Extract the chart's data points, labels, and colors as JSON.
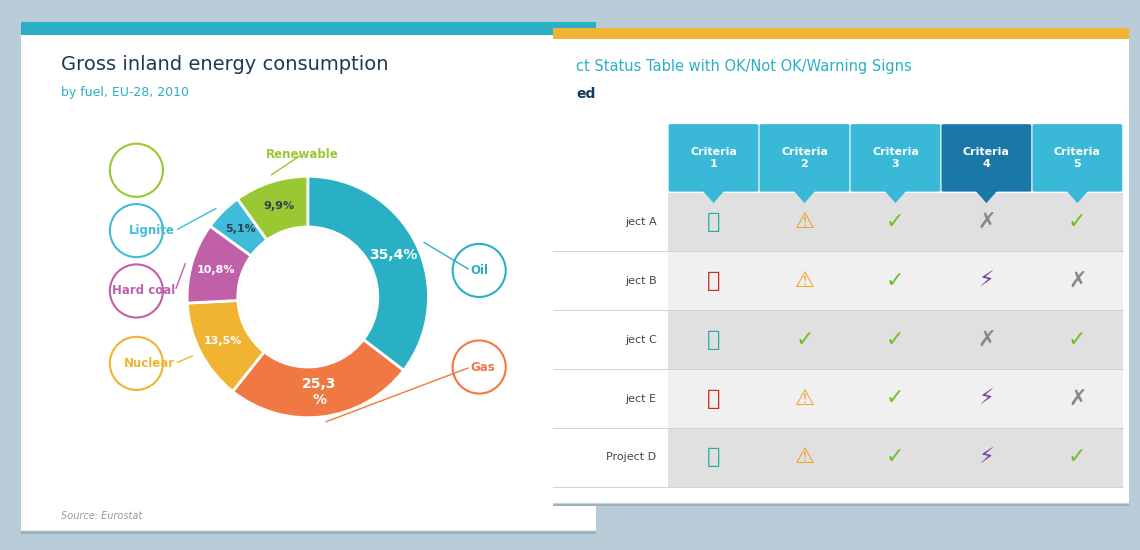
{
  "left_card": {
    "bg_color": "#ffffff",
    "title": "Gross inland energy consumption",
    "subtitle": "by fuel, EU-28, 2010",
    "title_color": "#1a3a5c",
    "subtitle_color": "#2ab0c5",
    "source": "Source: Eurostat",
    "top_border_color": "#2ab0c5",
    "pie_data": [
      35.4,
      25.3,
      13.5,
      10.8,
      5.1,
      9.9
    ],
    "pie_labels": [
      "Oil",
      "Gas",
      "Nuclear",
      "Hard coal",
      "Lignite",
      "Renewable"
    ],
    "pie_colors": [
      "#2ab0c5",
      "#f07843",
      "#f0b332",
      "#c060a8",
      "#40bcd8",
      "#9ac832"
    ],
    "pie_text_colors": [
      "#ffffff",
      "#ffffff",
      "#ffffff",
      "#ffffff",
      "#2e4057",
      "#2e4057"
    ],
    "pie_pct_labels": [
      "35,4%",
      "25,3\n%",
      "13,5%",
      "10,8%",
      "5,1%",
      "9,9%"
    ],
    "label_colors": {
      "Oil": "#2ab0c5",
      "Gas": "#f07843",
      "Nuclear": "#f0b332",
      "Hard coal": "#c060a8",
      "Lignite": "#40bcd8",
      "Renewable": "#9ac832"
    }
  },
  "right_card": {
    "bg_color": "#ffffff",
    "top_border_color": "#f0b332",
    "title": "ct Status Table with OK/Not OK/Warning Signs",
    "subtitle": "ed",
    "title_color": "#2ab0c5",
    "subtitle_color": "#1a3a5c",
    "columns": [
      "Criteria\n1",
      "Criteria\n2",
      "Criteria\n3",
      "Criteria\n4",
      "Criteria\n5"
    ],
    "col_header_bg": [
      "#3ab8d8",
      "#3ab8d8",
      "#3ab8d8",
      "#1a78a8",
      "#3ab8d8"
    ],
    "rows": [
      "ject A",
      "ject B",
      "ject C",
      "ject E",
      "Project D"
    ],
    "row_bg": [
      "#e0e0e0",
      "#f0f0f0",
      "#e0e0e0",
      "#f0f0f0",
      "#e0e0e0"
    ],
    "table_data": [
      [
        "thumbs_up_teal",
        "warning_orange",
        "check_green",
        "x_gray",
        "check_green"
      ],
      [
        "thumbs_down_red",
        "warning_orange",
        "check_green",
        "lightning_purple",
        "x_gray"
      ],
      [
        "thumbs_up_teal",
        "check_green",
        "check_green",
        "x_gray",
        "check_green"
      ],
      [
        "thumbs_down_red",
        "warning_orange",
        "check_green",
        "lightning_purple",
        "x_gray"
      ],
      [
        "thumbs_up_teal",
        "warning_orange",
        "check_green",
        "lightning_purple",
        "check_green"
      ]
    ],
    "symbol_colors": {
      "thumbs_up_teal": "#2aada0",
      "thumbs_down_red": "#cc2820",
      "warning_orange": "#f0a020",
      "check_green": "#70c020",
      "x_gray": "#888888",
      "lightning_purple": "#7840a0"
    }
  },
  "bg_color": "#b8ccd8",
  "shadow_color": "#a0b8c8"
}
